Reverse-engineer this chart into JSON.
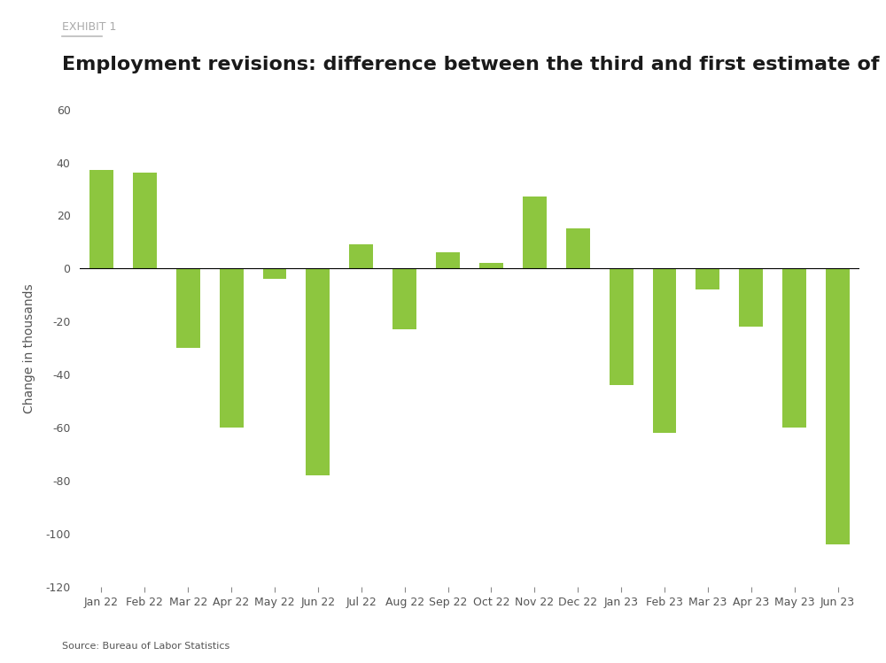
{
  "categories": [
    "Jan 22",
    "Feb 22",
    "Mar 22",
    "Apr 22",
    "May 22",
    "Jun 22",
    "Jul 22",
    "Aug 22",
    "Sep 22",
    "Oct 22",
    "Nov 22",
    "Dec 22",
    "Jan 23",
    "Feb 23",
    "Mar 23",
    "Apr 23",
    "May 23",
    "Jun 23"
  ],
  "values": [
    37,
    36,
    -30,
    -60,
    -4,
    -78,
    9,
    -23,
    6,
    2,
    27,
    15,
    -44,
    -62,
    -8,
    -22,
    -60,
    -104
  ],
  "bar_color": "#8DC63F",
  "title": "Employment revisions: difference between the third and first estimate of nonfarm payrolls",
  "exhibit_label": "EXHIBIT 1",
  "ylabel": "Change in thousands",
  "source": "Source: Bureau of Labor Statistics",
  "ylim": [
    -120,
    60
  ],
  "yticks": [
    -120,
    -100,
    -80,
    -60,
    -40,
    -20,
    0,
    20,
    40,
    60
  ],
  "background_color": "#FFFFFF",
  "title_fontsize": 16,
  "exhibit_fontsize": 9,
  "ylabel_fontsize": 10,
  "tick_fontsize": 9,
  "source_fontsize": 8
}
